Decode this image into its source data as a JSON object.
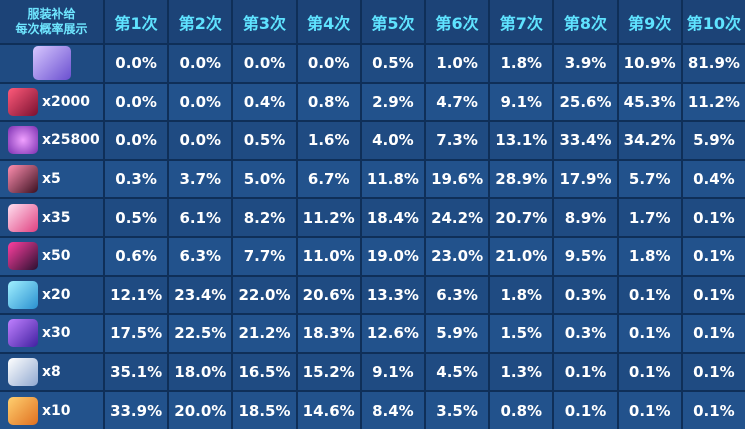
{
  "header": {
    "title_lines": [
      "服装补给",
      "每次概率展示"
    ],
    "columns": [
      "第1次",
      "第2次",
      "第3次",
      "第4次",
      "第5次",
      "第6次",
      "第7次",
      "第8次",
      "第9次",
      "第10次"
    ]
  },
  "rows": [
    {
      "values": [
        "0.0%",
        "0.0%",
        "0.0%",
        "0.0%",
        "0.5%",
        "1.0%",
        "1.8%",
        "3.9%",
        "10.9%",
        "81.9%"
      ]
    },
    {
      "quantity": "x2000",
      "values": [
        "0.0%",
        "0.0%",
        "0.4%",
        "0.8%",
        "2.9%",
        "4.7%",
        "9.1%",
        "25.6%",
        "45.3%",
        "11.2%"
      ]
    },
    {
      "quantity": "x25800",
      "values": [
        "0.0%",
        "0.0%",
        "0.5%",
        "1.6%",
        "4.0%",
        "7.3%",
        "13.1%",
        "33.4%",
        "34.2%",
        "5.9%"
      ]
    },
    {
      "quantity": "x5",
      "values": [
        "0.3%",
        "3.7%",
        "5.0%",
        "6.7%",
        "11.8%",
        "19.6%",
        "28.9%",
        "17.9%",
        "5.7%",
        "0.4%"
      ]
    },
    {
      "quantity": "x35",
      "values": [
        "0.5%",
        "6.1%",
        "8.2%",
        "11.2%",
        "18.4%",
        "24.2%",
        "20.7%",
        "8.9%",
        "1.7%",
        "0.1%"
      ]
    },
    {
      "quantity": "x50",
      "values": [
        "0.6%",
        "6.3%",
        "7.7%",
        "11.0%",
        "19.0%",
        "23.0%",
        "21.0%",
        "9.5%",
        "1.8%",
        "0.1%"
      ]
    },
    {
      "quantity": "x20",
      "values": [
        "12.1%",
        "23.4%",
        "22.0%",
        "20.6%",
        "13.3%",
        "6.3%",
        "1.8%",
        "0.3%",
        "0.1%",
        "0.1%"
      ]
    },
    {
      "quantity": "x30",
      "values": [
        "17.5%",
        "22.5%",
        "21.2%",
        "18.3%",
        "12.6%",
        "5.9%",
        "1.5%",
        "0.3%",
        "0.1%",
        "0.1%"
      ]
    },
    {
      "quantity": "x8",
      "values": [
        "35.1%",
        "18.0%",
        "16.5%",
        "15.2%",
        "9.1%",
        "4.5%",
        "1.3%",
        "0.1%",
        "0.1%",
        "0.1%"
      ]
    },
    {
      "quantity": "x10",
      "values": [
        "33.9%",
        "20.0%",
        "18.5%",
        "14.6%",
        "8.4%",
        "3.5%",
        "0.8%",
        "0.1%",
        "0.1%",
        "0.1%"
      ]
    }
  ]
}
